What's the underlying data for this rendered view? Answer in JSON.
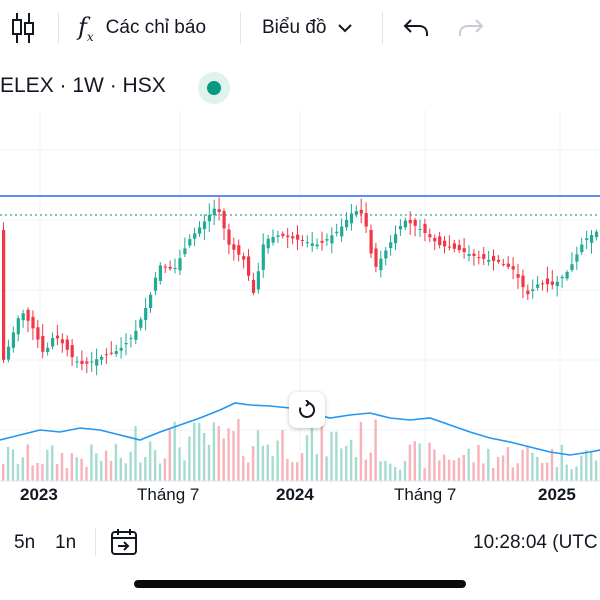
{
  "toolbar": {
    "indicators_label": "Các chỉ báo",
    "chart_type_label": "Biểu đồ"
  },
  "symbol": {
    "title": "ELEX · 1W · HSX",
    "status_color": "#089981"
  },
  "chart_data": {
    "type": "candlestick",
    "x_labels": [
      "2023",
      "Tháng 7",
      "2024",
      "Tháng 7",
      "2025"
    ],
    "resistance_line": "solid blue horizontal line",
    "previous_close_line": "dotted green horizontal line",
    "volume_moving_average": "blue line",
    "colors": {
      "up": "#22ab94",
      "down": "#f23645",
      "line": "#2962ff",
      "ma": "#2196f3"
    }
  },
  "bottombar": {
    "range_5y": "5n",
    "range_1y": "1n",
    "time": "10:28:04 (UTC"
  }
}
